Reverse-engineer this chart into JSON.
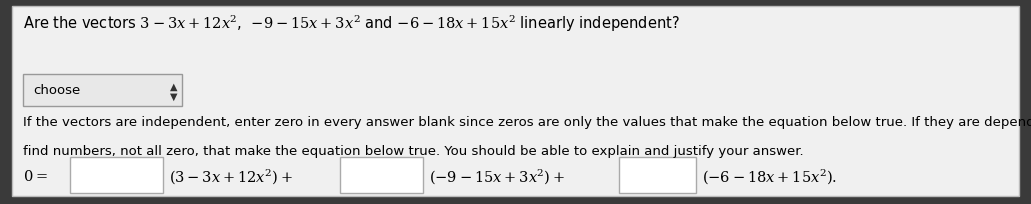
{
  "outer_bg_color": "#3a3a3a",
  "panel_color": "#f0f0f0",
  "inner_panel_color": "#ffffff",
  "border_color": "#bbbbbb",
  "title_line": "Are the vectors $3 - 3x + 12x^2$,  $-9 - 15x + 3x^2$ and $-6 - 18x + 15x^2$ linearly independent?",
  "dropdown_label": "choose",
  "body_text_line1": "If the vectors are independent, enter zero in every answer blank since zeros are only the values that make the equation below true. If they are dependent,",
  "body_text_line2": "find numbers, not all zero, that make the equation below true. You should be able to explain and justify your answer.",
  "eq_left": "$0 =$",
  "eq_term1": "$(3 - 3x + 12x^2)+$",
  "eq_term2": "$(-9 - 15x + 3x^2)+$",
  "eq_term3": "$(-6 - 18x + 15x^2).$",
  "font_size_title": 10.5,
  "font_size_body": 9.5,
  "font_size_eq": 10.5,
  "font_size_dropdown": 9.5
}
